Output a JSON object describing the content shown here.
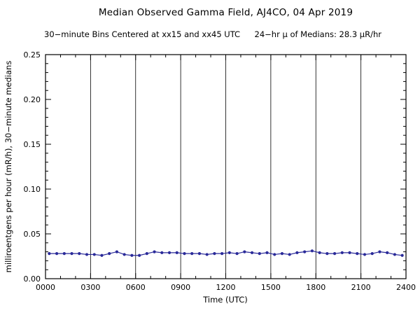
{
  "chart_data": {
    "type": "line",
    "title": "Median Observed Gamma Field, AJ4CO, 04 Apr 2019",
    "subtitle_left": "30−minute Bins Centered at xx15 and xx45 UTC",
    "subtitle_right": "24−hr μ of Medians: 28.3 μR/hr",
    "xlabel": "Time (UTC)",
    "ylabel": "milliroentgens per hour (mR/h), 30−minute medians",
    "x": [
      "0015",
      "0045",
      "0115",
      "0145",
      "0215",
      "0245",
      "0315",
      "0345",
      "0415",
      "0445",
      "0515",
      "0545",
      "0615",
      "0645",
      "0715",
      "0745",
      "0815",
      "0845",
      "0915",
      "0945",
      "1015",
      "1045",
      "1115",
      "1145",
      "1215",
      "1245",
      "1315",
      "1345",
      "1415",
      "1445",
      "1515",
      "1545",
      "1615",
      "1645",
      "1715",
      "1745",
      "1815",
      "1845",
      "1915",
      "1945",
      "2015",
      "2045",
      "2115",
      "2145",
      "2215",
      "2245",
      "2315",
      "2345"
    ],
    "values": [
      0.028,
      0.028,
      0.028,
      0.028,
      0.028,
      0.027,
      0.027,
      0.026,
      0.028,
      0.03,
      0.027,
      0.026,
      0.026,
      0.028,
      0.03,
      0.029,
      0.029,
      0.029,
      0.028,
      0.028,
      0.028,
      0.027,
      0.028,
      0.028,
      0.029,
      0.028,
      0.03,
      0.029,
      0.028,
      0.029,
      0.027,
      0.028,
      0.027,
      0.029,
      0.03,
      0.031,
      0.029,
      0.028,
      0.028,
      0.029,
      0.029,
      0.028,
      0.027,
      0.028,
      0.03,
      0.029,
      0.027,
      0.026
    ],
    "units": "mR/h",
    "ylim": [
      0.0,
      0.25
    ],
    "xlim_minutes": [
      0,
      1440
    ],
    "xtick_labels": [
      "0000",
      "0300",
      "0600",
      "0900",
      "1200",
      "1500",
      "1800",
      "2100",
      "2400"
    ],
    "xtick_step_minutes": 180,
    "x_minor_step_minutes": 60,
    "ytick_step": 0.05,
    "y_minor_step": 0.01,
    "grid": "vertical-at-major-xticks",
    "legend": "none",
    "mean_of_medians": "28.3 μR/hr",
    "colors": {
      "line": "#2a2a99",
      "marker": "#2a2a99",
      "axis": "#000000",
      "grid": "#000000",
      "background": "#ffffff"
    }
  }
}
